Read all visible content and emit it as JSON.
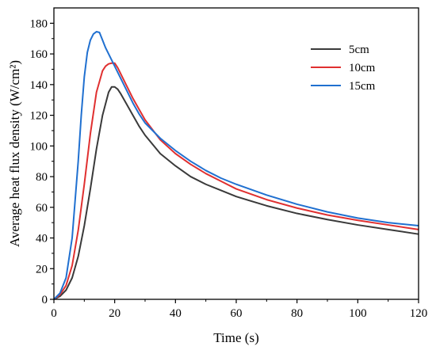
{
  "chart_data": {
    "type": "line",
    "xlabel": "Time (s)",
    "ylabel": "Average heat flux density (W/cm²)",
    "xlim": [
      0,
      120
    ],
    "ylim": [
      0,
      190
    ],
    "x_ticks": [
      0,
      20,
      40,
      60,
      80,
      100,
      120
    ],
    "y_ticks": [
      0,
      20,
      40,
      60,
      80,
      100,
      120,
      140,
      160,
      180
    ],
    "grid": false,
    "legend_position": "top-right",
    "series": [
      {
        "name": "5cm",
        "color": "#3a3a3a",
        "points": [
          [
            0,
            0
          ],
          [
            2,
            2
          ],
          [
            4,
            6
          ],
          [
            6,
            14
          ],
          [
            8,
            28
          ],
          [
            10,
            48
          ],
          [
            12,
            72
          ],
          [
            14,
            98
          ],
          [
            16,
            120
          ],
          [
            18,
            135
          ],
          [
            19,
            138.5
          ],
          [
            20,
            138.5
          ],
          [
            21,
            137
          ],
          [
            22,
            134
          ],
          [
            24,
            127
          ],
          [
            26,
            120
          ],
          [
            28,
            113
          ],
          [
            30,
            107
          ],
          [
            35,
            95
          ],
          [
            40,
            87
          ],
          [
            45,
            80
          ],
          [
            50,
            75
          ],
          [
            55,
            71
          ],
          [
            60,
            67
          ],
          [
            70,
            61
          ],
          [
            80,
            56
          ],
          [
            90,
            52
          ],
          [
            100,
            48.5
          ],
          [
            110,
            45.5
          ],
          [
            120,
            42.5
          ]
        ]
      },
      {
        "name": "10cm",
        "color": "#e03030",
        "points": [
          [
            0,
            0
          ],
          [
            2,
            3
          ],
          [
            4,
            9
          ],
          [
            6,
            22
          ],
          [
            8,
            45
          ],
          [
            10,
            75
          ],
          [
            12,
            108
          ],
          [
            14,
            135
          ],
          [
            16,
            149
          ],
          [
            17,
            152
          ],
          [
            18,
            153.5
          ],
          [
            19,
            154
          ],
          [
            20,
            154
          ],
          [
            21,
            151
          ],
          [
            22,
            147
          ],
          [
            24,
            139
          ],
          [
            26,
            131
          ],
          [
            28,
            124
          ],
          [
            30,
            117
          ],
          [
            35,
            104
          ],
          [
            40,
            95
          ],
          [
            45,
            88
          ],
          [
            50,
            82
          ],
          [
            55,
            77
          ],
          [
            60,
            72
          ],
          [
            70,
            65
          ],
          [
            80,
            59.5
          ],
          [
            90,
            55
          ],
          [
            100,
            51.5
          ],
          [
            110,
            48.5
          ],
          [
            120,
            45.5
          ]
        ]
      },
      {
        "name": "15cm",
        "color": "#2070d0",
        "points": [
          [
            0,
            0
          ],
          [
            2,
            4
          ],
          [
            4,
            14
          ],
          [
            6,
            40
          ],
          [
            8,
            90
          ],
          [
            9,
            120
          ],
          [
            10,
            145
          ],
          [
            11,
            161
          ],
          [
            12,
            169
          ],
          [
            13,
            173
          ],
          [
            14,
            174.5
          ],
          [
            15,
            174
          ],
          [
            16,
            169
          ],
          [
            17,
            164
          ],
          [
            18,
            160
          ],
          [
            20,
            152
          ],
          [
            22,
            144
          ],
          [
            24,
            136
          ],
          [
            26,
            128
          ],
          [
            28,
            121
          ],
          [
            30,
            115
          ],
          [
            35,
            105
          ],
          [
            40,
            97
          ],
          [
            45,
            90
          ],
          [
            50,
            84
          ],
          [
            55,
            79
          ],
          [
            60,
            75
          ],
          [
            70,
            68
          ],
          [
            80,
            62
          ],
          [
            90,
            57
          ],
          [
            100,
            53
          ],
          [
            110,
            50
          ],
          [
            120,
            48
          ]
        ]
      }
    ]
  }
}
